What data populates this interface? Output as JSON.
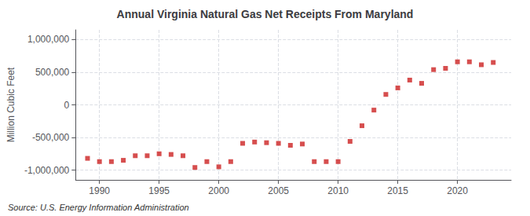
{
  "chart_data": {
    "type": "scatter",
    "title": "Annual Virginia Natural Gas Net Receipts From Maryland",
    "ylabel": "Million Cubic Feet",
    "annotation": "Source: U.S. Energy Information Administration",
    "x": [
      1989,
      1990,
      1991,
      1992,
      1993,
      1994,
      1995,
      1996,
      1997,
      1998,
      1999,
      2000,
      2001,
      2002,
      2003,
      2004,
      2005,
      2006,
      2007,
      2008,
      2009,
      2010,
      2011,
      2012,
      2013,
      2014,
      2015,
      2016,
      2017,
      2018,
      2019,
      2020,
      2021,
      2022,
      2023
    ],
    "values": [
      -820000,
      -870000,
      -870000,
      -850000,
      -780000,
      -780000,
      -750000,
      -760000,
      -780000,
      -960000,
      -870000,
      -950000,
      -870000,
      -590000,
      -570000,
      -580000,
      -590000,
      -620000,
      -600000,
      -870000,
      -870000,
      -870000,
      -560000,
      -320000,
      -80000,
      160000,
      260000,
      380000,
      330000,
      540000,
      560000,
      660000,
      660000,
      615000,
      650000
    ],
    "color": "#cc2222",
    "marker": "square",
    "xlim": [
      1988.0,
      2024.5
    ],
    "ylim": [
      -1150000,
      1150000
    ],
    "xticks": [
      1990,
      1995,
      2000,
      2005,
      2010,
      2015,
      2020
    ],
    "yticks": [
      {
        "value": -1000000,
        "label": "-1,000,000"
      },
      {
        "value": -500000,
        "label": "-500,000"
      },
      0,
      {
        "value": 500000,
        "label": "500,000"
      },
      {
        "value": 1000000,
        "label": "1,000,000"
      }
    ],
    "grid": true
  }
}
